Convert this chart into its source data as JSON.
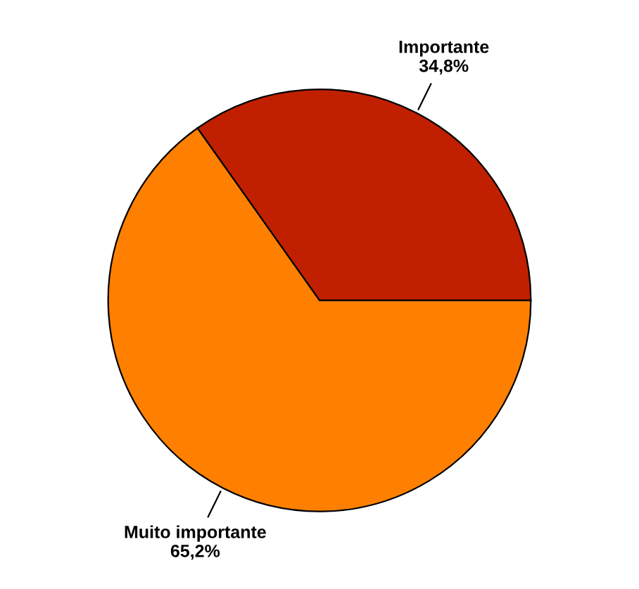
{
  "chart_data": {
    "type": "pie",
    "categories": [
      "Importante",
      "Muito importante"
    ],
    "values": [
      34.8,
      65.2
    ],
    "value_labels": [
      "34,8%",
      "65,2%"
    ],
    "colors": [
      "#c02000",
      "#ff8000"
    ]
  }
}
